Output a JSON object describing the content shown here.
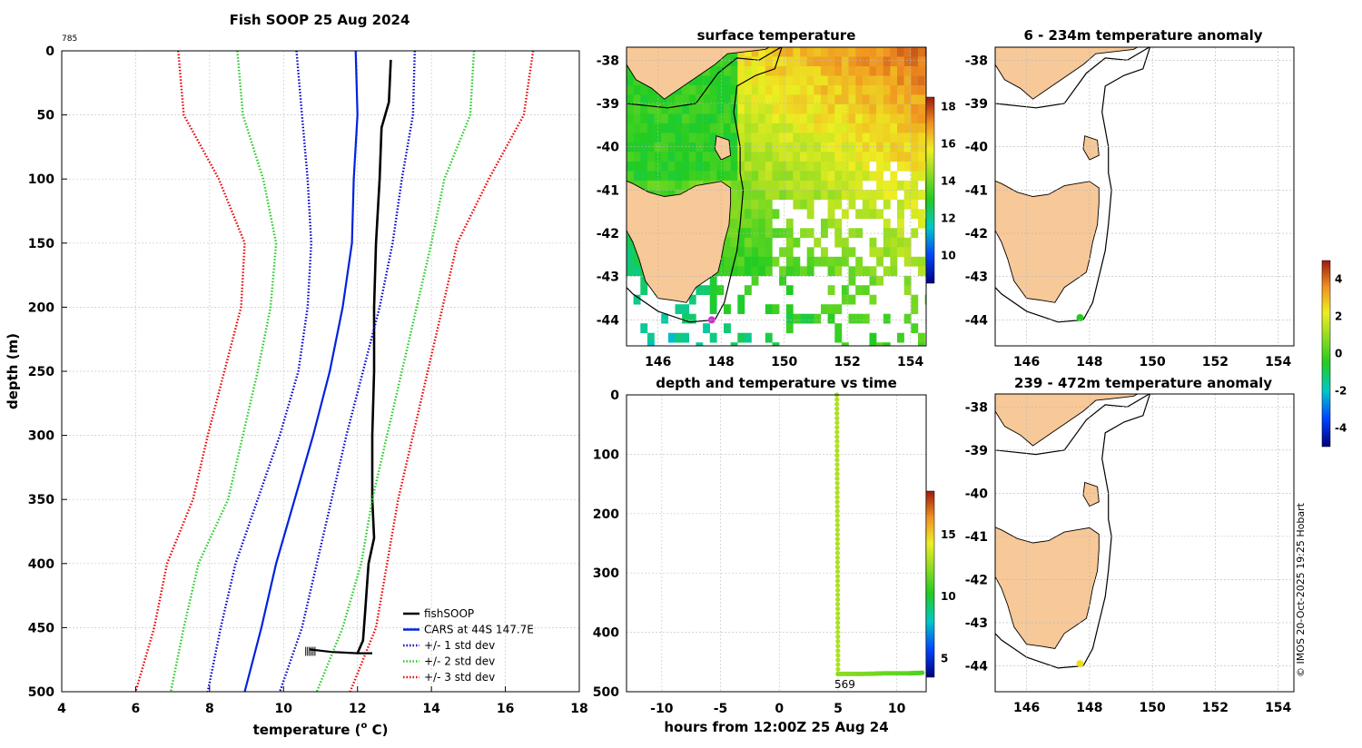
{
  "figure": {
    "title": "Fish SOOP 25 Aug 2024",
    "profile_id": "785",
    "copyright": "© IMOS 20-Oct-2025 19:25 Hobart"
  },
  "colors": {
    "fishsoop": "#000000",
    "cars": "#0022dd",
    "std1": "#0000cc",
    "std2": "#22cc22",
    "std3": "#ee0000",
    "land": "#f7c898",
    "marker_surface": "#cc33cc",
    "marker_anom1": "#22cc22",
    "marker_anom2": "#eedd22"
  },
  "chart_data": [
    {
      "id": "profile",
      "type": "line",
      "title": "Fish SOOP 25 Aug 2024",
      "xlabel": "temperature (",
      "xlabel_sup": "o",
      "xlabel_end": " C)",
      "ylabel": "depth (m)",
      "xlim": [
        4,
        18
      ],
      "ylim": [
        500,
        0
      ],
      "xticks": [
        "4",
        "6",
        "8",
        "10",
        "12",
        "14",
        "16",
        "18"
      ],
      "yticks": [
        "0",
        "50",
        "100",
        "150",
        "200",
        "250",
        "300",
        "350",
        "400",
        "450",
        "500"
      ],
      "grid": true,
      "legend_position": "bottom-right",
      "series": [
        {
          "name": "fishSOOP",
          "color_key": "fishsoop",
          "style": "solid",
          "depth": [
            7,
            40,
            60,
            100,
            150,
            200,
            250,
            300,
            350,
            380,
            400,
            420,
            440,
            460,
            470
          ],
          "temp": [
            12.9,
            12.85,
            12.65,
            12.6,
            12.5,
            12.45,
            12.45,
            12.4,
            12.4,
            12.45,
            12.3,
            12.25,
            12.2,
            12.15,
            12.0
          ]
        },
        {
          "name": "CARS at 44S 147.7E",
          "color_key": "cars",
          "style": "solid",
          "depth": [
            0,
            50,
            100,
            150,
            200,
            250,
            300,
            350,
            400,
            450,
            500
          ],
          "temp": [
            11.95,
            12.0,
            11.9,
            11.85,
            11.6,
            11.25,
            10.8,
            10.3,
            9.8,
            9.4,
            8.95
          ]
        },
        {
          "name": "+/- 1 std dev",
          "color_key": "std1",
          "style": "dotted",
          "depth": [
            0,
            50,
            100,
            150,
            200,
            250,
            300,
            350,
            400,
            450,
            500
          ],
          "lower": [
            10.35,
            10.5,
            10.65,
            10.75,
            10.65,
            10.4,
            9.9,
            9.3,
            8.7,
            8.3,
            7.95
          ],
          "upper": [
            13.55,
            13.5,
            13.2,
            12.95,
            12.6,
            12.15,
            11.7,
            11.3,
            10.9,
            10.5,
            9.9
          ]
        },
        {
          "name": "+/- 2 std dev",
          "color_key": "std2",
          "style": "dotted",
          "depth": [
            0,
            50,
            100,
            150,
            200,
            250,
            300,
            350,
            400,
            450,
            500
          ],
          "lower": [
            8.75,
            8.9,
            9.45,
            9.8,
            9.65,
            9.3,
            8.9,
            8.5,
            7.7,
            7.3,
            6.95
          ],
          "upper": [
            15.15,
            15.05,
            14.35,
            14.0,
            13.6,
            13.2,
            12.8,
            12.4,
            12.1,
            11.6,
            10.9
          ]
        },
        {
          "name": "+/- 3 std dev",
          "color_key": "std3",
          "style": "dotted",
          "depth": [
            0,
            50,
            100,
            150,
            200,
            250,
            300,
            350,
            400,
            450,
            500
          ],
          "lower": [
            7.15,
            7.3,
            8.25,
            8.95,
            8.85,
            8.4,
            7.95,
            7.55,
            6.85,
            6.5,
            6.0
          ],
          "upper": [
            16.75,
            16.5,
            15.55,
            14.7,
            14.3,
            13.9,
            13.5,
            13.1,
            12.8,
            12.5,
            11.8
          ]
        }
      ]
    },
    {
      "id": "surface",
      "type": "heatmap",
      "title": "surface temperature",
      "xlim": [
        145,
        154.5
      ],
      "ylim": [
        -44.6,
        -37.7
      ],
      "xticks": [
        "146",
        "148",
        "150",
        "152",
        "154"
      ],
      "yticks": [
        "-38",
        "-39",
        "-40",
        "-41",
        "-42",
        "-43",
        "-44"
      ],
      "colorbar_ticks": [
        "10",
        "12",
        "14",
        "16",
        "18"
      ],
      "colorbar_range": [
        8.5,
        18.5
      ],
      "marker": {
        "lon": 147.7,
        "lat": -44.0,
        "color_key": "marker_surface"
      }
    },
    {
      "id": "depth_time",
      "type": "scatter",
      "title": "depth and temperature vs time",
      "xlabel": "hours from 12:00Z 25 Aug 24",
      "xlim": [
        -13,
        12.5
      ],
      "ylim": [
        500,
        0
      ],
      "xticks": [
        "-10",
        "-5",
        "0",
        "5",
        "10"
      ],
      "yticks": [
        "0",
        "100",
        "200",
        "300",
        "400",
        "500"
      ],
      "colorbar_ticks": [
        "5",
        "10",
        "15"
      ],
      "colorbar_range": [
        3.5,
        18.5
      ],
      "annotation": "569",
      "descent": {
        "hours": [
          4.9,
          4.95,
          5.0
        ],
        "depth": [
          0,
          240,
          470
        ],
        "temp": 12.9
      },
      "bottom": {
        "hours": [
          5.0,
          7.0,
          9.0,
          11.0,
          12.3
        ],
        "depth": [
          470,
          470,
          469,
          469,
          468
        ],
        "temp": [
          12.3,
          12.0,
          11.6,
          11.3,
          11.0
        ]
      }
    },
    {
      "id": "anomaly_shallow",
      "type": "heatmap",
      "title": "6 - 234m temperature anomaly",
      "xlim": [
        145,
        154.5
      ],
      "ylim": [
        -44.6,
        -37.7
      ],
      "xticks": [
        "146",
        "148",
        "150",
        "152",
        "154"
      ],
      "yticks": [
        "-38",
        "-39",
        "-40",
        "-41",
        "-42",
        "-43",
        "-44"
      ],
      "marker": {
        "lon": 147.7,
        "lat": -43.95,
        "color_key": "marker_anom1"
      }
    },
    {
      "id": "anomaly_deep",
      "type": "heatmap",
      "title": "239 - 472m temperature anomaly",
      "xlim": [
        145,
        154.5
      ],
      "ylim": [
        -44.6,
        -37.7
      ],
      "xticks": [
        "146",
        "148",
        "150",
        "152",
        "154"
      ],
      "yticks": [
        "-38",
        "-39",
        "-40",
        "-41",
        "-42",
        "-43",
        "-44"
      ],
      "marker": {
        "lon": 147.7,
        "lat": -43.95,
        "color_key": "marker_anom2"
      }
    },
    {
      "id": "anomaly_colorbar",
      "type": "heatmap",
      "colorbar_ticks": [
        "4",
        "2",
        "0",
        "-2",
        "-4"
      ],
      "colorbar_range": [
        -5,
        5
      ]
    }
  ]
}
